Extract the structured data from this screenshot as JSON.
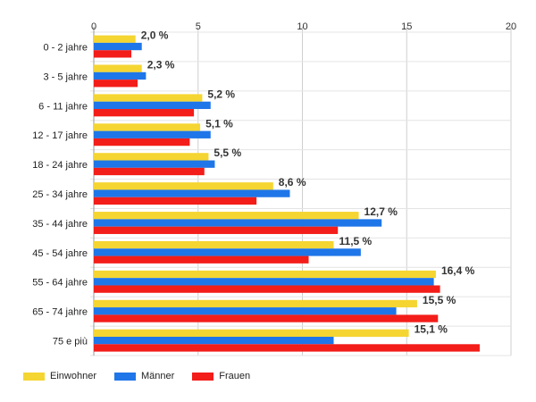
{
  "chart_data": {
    "type": "bar",
    "orientation": "horizontal",
    "categories": [
      "0 - 2 jahre",
      "3 - 5 jahre",
      "6 - 11 jahre",
      "12 - 17 jahre",
      "18 - 24 jahre",
      "25 - 34 jahre",
      "35 - 44 jahre",
      "45 - 54 jahre",
      "55 - 64 jahre",
      "65 - 74 jahre",
      "75 e più"
    ],
    "series": [
      {
        "name": "Einwohner",
        "color": "#f5d531",
        "values": [
          2.0,
          2.3,
          5.2,
          5.1,
          5.5,
          8.6,
          12.7,
          11.5,
          16.4,
          15.5,
          15.1
        ]
      },
      {
        "name": "Männer",
        "color": "#1f76e8",
        "values": [
          2.3,
          2.5,
          5.6,
          5.6,
          5.8,
          9.4,
          13.8,
          12.8,
          16.3,
          14.5,
          11.5
        ]
      },
      {
        "name": "Frauen",
        "color": "#f31d19",
        "values": [
          1.8,
          2.1,
          4.8,
          4.6,
          5.3,
          7.8,
          11.7,
          10.3,
          16.6,
          16.5,
          18.5
        ]
      }
    ],
    "data_labels": [
      "2,0 %",
      "2,3 %",
      "5,2 %",
      "5,1 %",
      "5,5 %",
      "8,6 %",
      "12,7 %",
      "11,5 %",
      "16,4 %",
      "15,5 %",
      "15,1 %"
    ],
    "xlim": [
      0,
      20
    ],
    "xticks": [
      0,
      5,
      10,
      15,
      20
    ],
    "grid": true,
    "legend_position": "bottom-left"
  }
}
